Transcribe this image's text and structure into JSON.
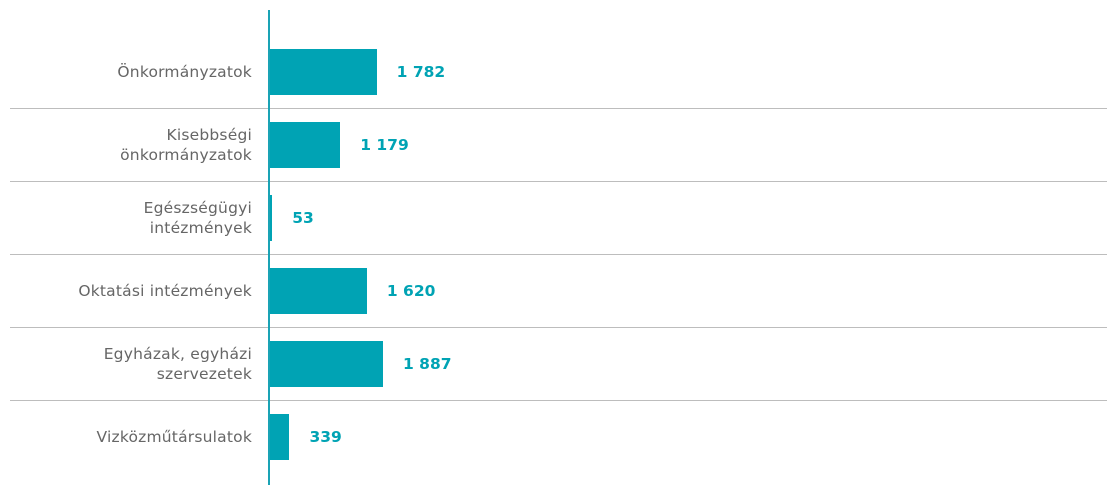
{
  "chart_data": {
    "type": "bar",
    "orientation": "horizontal",
    "categories": [
      "Önkormányzatok",
      "Kisebbségi önkormányzatok",
      "Egészségügyi intézmények",
      "Oktatási intézmények",
      "Egyházak, egyházi szervezetek",
      "Vizközműtársulatok"
    ],
    "values": [
      1782,
      1179,
      53,
      1620,
      1887,
      339
    ],
    "value_labels": [
      "1 782",
      "1 179",
      "53",
      "1 620",
      "1 887",
      "339"
    ],
    "color": "#00a3b4"
  }
}
